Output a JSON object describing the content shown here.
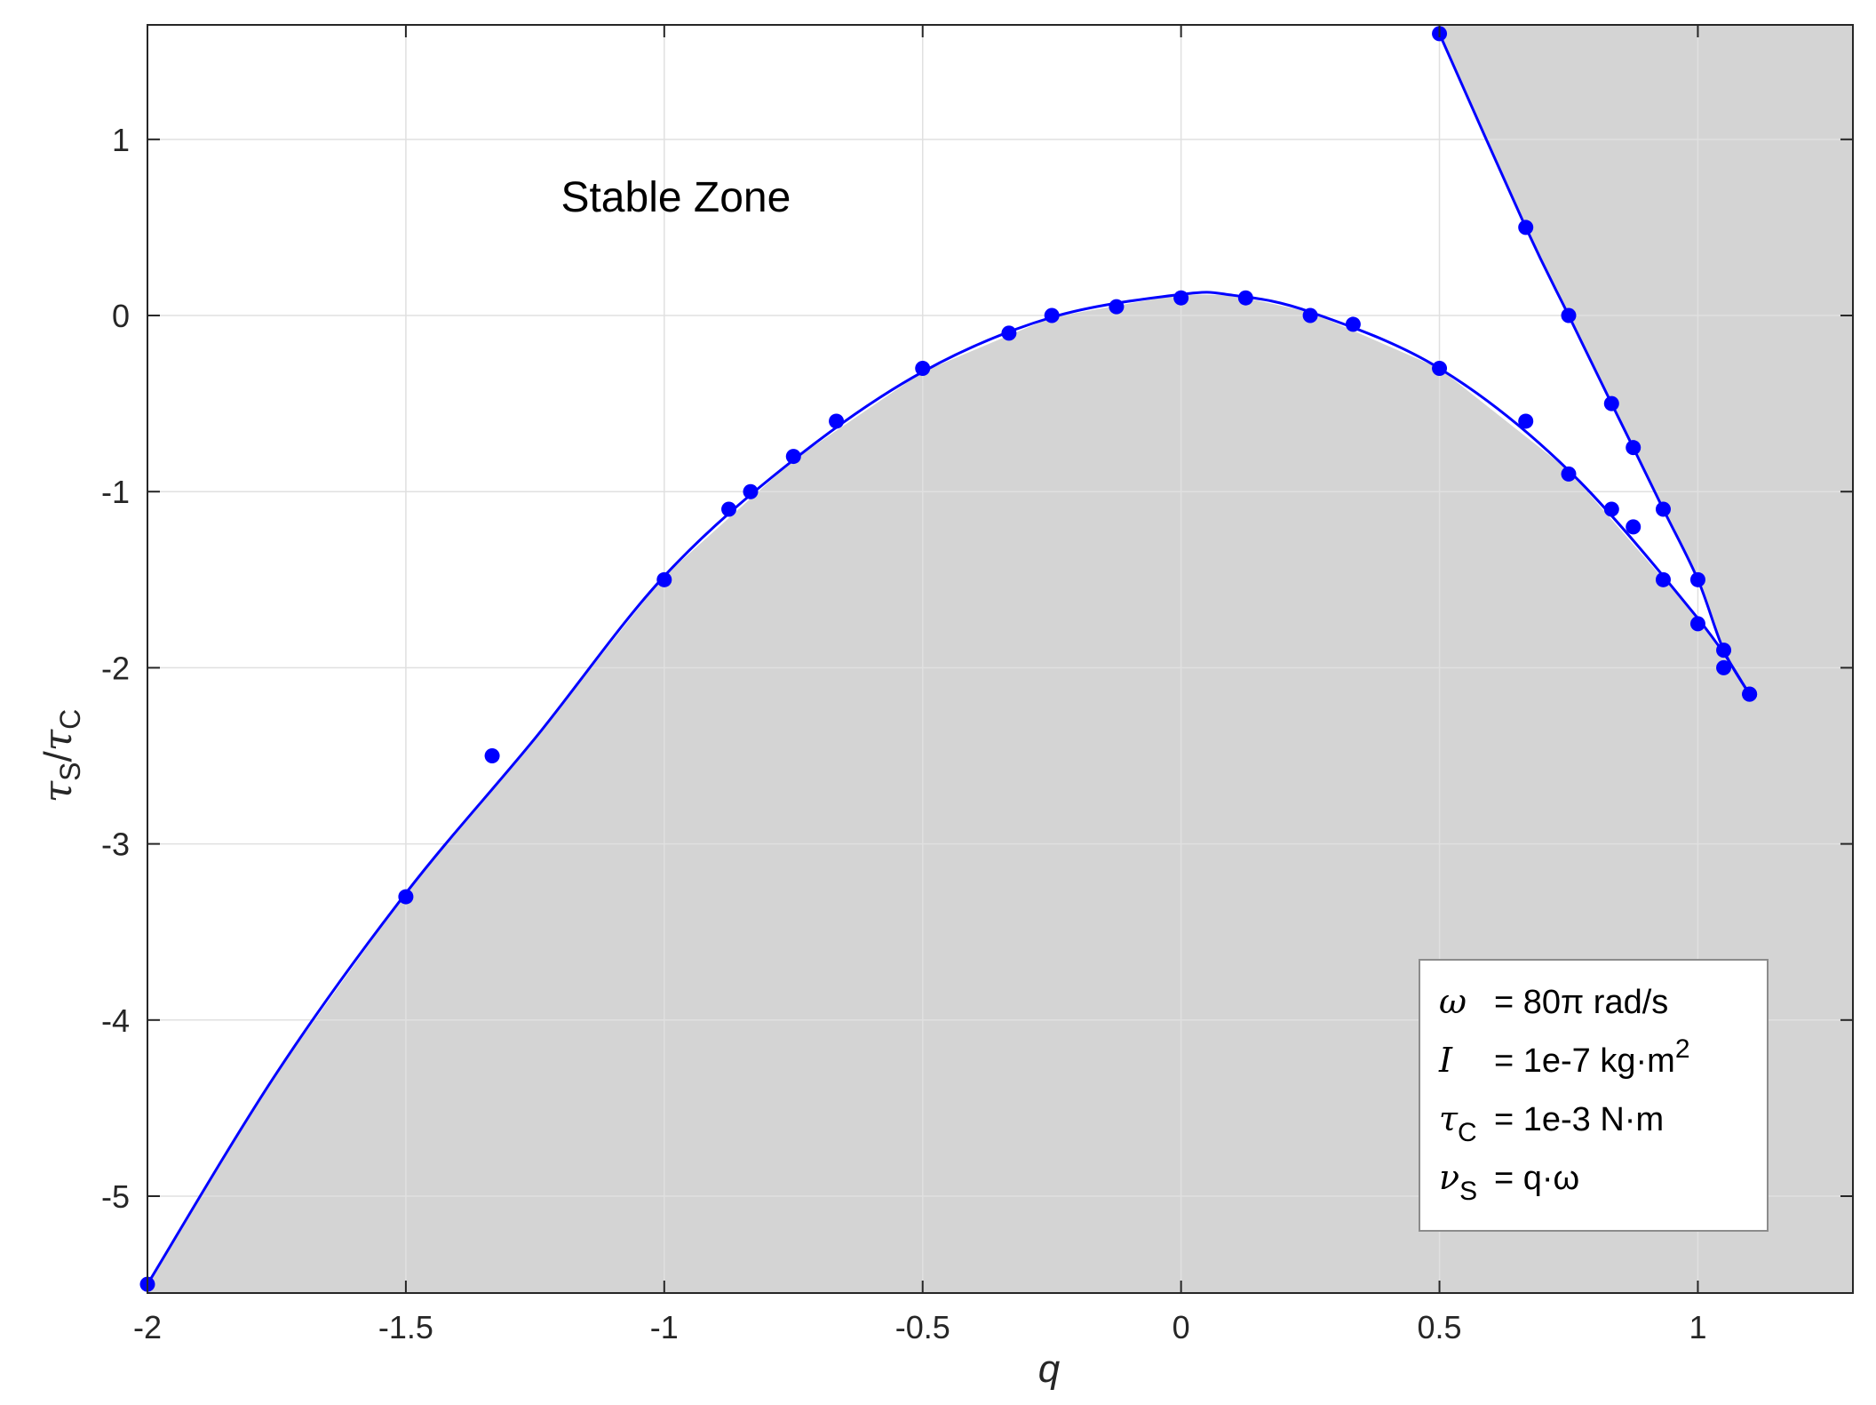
{
  "chart_data": {
    "type": "scatter",
    "title": "",
    "xlabel": "q",
    "ylabel": "τS/τC",
    "ylabel_parts": {
      "a": "τ",
      "a_sub": "S",
      "slash": "/",
      "b": "τ",
      "b_sub": "C"
    },
    "xlim": [
      -2,
      1.3
    ],
    "ylim": [
      -5.55,
      1.65
    ],
    "x_ticks": [
      -2,
      -1.5,
      -1,
      -0.5,
      0,
      0.5,
      1
    ],
    "y_ticks": [
      -5,
      -4,
      -3,
      -2,
      -1,
      0,
      1
    ],
    "x_tick_labels": [
      "-2",
      "-1.5",
      "-1",
      "-0.5",
      "0",
      "0.5",
      "1"
    ],
    "y_tick_labels": [
      "-5",
      "-4",
      "-3",
      "-2",
      "-1",
      "0",
      "1"
    ],
    "grid": true,
    "colors": {
      "series": "#0000ff",
      "shade": "#d4d4d4",
      "grid": "#e0e0e0"
    },
    "annotation": {
      "text": "Stable Zone",
      "x": -1.2,
      "y": 0.67
    },
    "series": [
      {
        "points": [
          [
            -2,
            -5.5
          ],
          [
            -1.5,
            -3.3
          ],
          [
            -1.333,
            -2.5
          ],
          [
            -1,
            -1.5
          ],
          [
            -0.875,
            -1.1
          ],
          [
            -0.833,
            -1.0
          ],
          [
            -0.75,
            -0.8
          ],
          [
            -0.667,
            -0.6
          ],
          [
            -0.5,
            -0.3
          ],
          [
            -0.333,
            -0.1
          ],
          [
            -0.25,
            0.0
          ],
          [
            -0.125,
            0.05
          ],
          [
            0,
            0.1
          ],
          [
            0.125,
            0.1
          ],
          [
            0.25,
            0.0
          ],
          [
            0.333,
            -0.05
          ],
          [
            0.5,
            -0.3
          ],
          [
            0.667,
            -0.6
          ],
          [
            0.75,
            -0.9
          ],
          [
            0.833,
            -1.1
          ],
          [
            0.875,
            -1.2
          ],
          [
            0.933,
            -1.5
          ],
          [
            1.0,
            -1.75
          ],
          [
            1.05,
            -2.0
          ],
          [
            1.1,
            -2.15
          ]
        ],
        "curve": [
          [
            -2,
            -5.5
          ],
          [
            -1.75,
            -4.3
          ],
          [
            -1.5,
            -3.28
          ],
          [
            -1.25,
            -2.4
          ],
          [
            -1,
            -1.48
          ],
          [
            -0.75,
            -0.82
          ],
          [
            -0.5,
            -0.32
          ],
          [
            -0.25,
            -0.01
          ],
          [
            0,
            0.12
          ],
          [
            0.1,
            0.115
          ],
          [
            0.25,
            0.02
          ],
          [
            0.5,
            -0.3
          ],
          [
            0.75,
            -0.88
          ],
          [
            1.0,
            -1.72
          ],
          [
            1.1,
            -2.15
          ]
        ]
      },
      {
        "points": [
          [
            0.5,
            1.6
          ],
          [
            0.667,
            0.5
          ],
          [
            0.75,
            0.0
          ],
          [
            0.833,
            -0.5
          ],
          [
            0.875,
            -0.75
          ],
          [
            0.933,
            -1.1
          ],
          [
            1.0,
            -1.5
          ],
          [
            1.05,
            -1.9
          ],
          [
            1.1,
            -2.15
          ]
        ],
        "curve": [
          [
            0.5,
            1.6
          ],
          [
            0.667,
            0.5
          ],
          [
            0.75,
            0.0
          ],
          [
            0.833,
            -0.5
          ],
          [
            0.875,
            -0.75
          ],
          [
            0.933,
            -1.1
          ],
          [
            1.0,
            -1.5
          ],
          [
            1.05,
            -1.9
          ],
          [
            1.1,
            -2.15
          ]
        ]
      }
    ],
    "legend_box": {
      "position": "bottom-right",
      "lines": [
        {
          "sym": "ω",
          "sub": "",
          "text": "= 80π rad/s",
          "sup": ""
        },
        {
          "sym": "I",
          "sub": "",
          "text": "= 1e-7 kg·m",
          "sup": "2"
        },
        {
          "sym": "τ",
          "sub": "C",
          "text": "= 1e-3 N·m",
          "sup": ""
        },
        {
          "sym": "ν",
          "sub": "S",
          "text": "= q·ω",
          "sup": ""
        }
      ]
    }
  }
}
